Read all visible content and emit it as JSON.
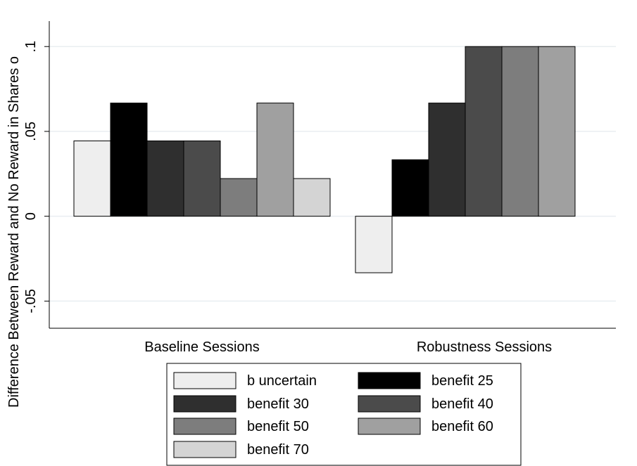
{
  "chart_data": {
    "type": "bar",
    "ylabel": "Difference Between Reward and No Reward in Shares o",
    "ylim": [
      -0.066,
      0.115
    ],
    "yticks": [
      {
        "value": -0.05,
        "label": "-.05"
      },
      {
        "value": 0,
        "label": "0"
      },
      {
        "value": 0.05,
        "label": ".05"
      },
      {
        "value": 0.1,
        "label": ".1"
      }
    ],
    "grid": true,
    "categories": [
      "Baseline Sessions",
      "Robustness Sessions"
    ],
    "series": [
      {
        "name": "b uncertain",
        "color": "#eeeeee",
        "values": [
          0.0444,
          -0.0333
        ]
      },
      {
        "name": "benefit 25",
        "color": "#000000",
        "values": [
          0.0667,
          0.0333
        ]
      },
      {
        "name": "benefit 30",
        "color": "#2f2f2f",
        "values": [
          0.0444,
          0.0667
        ]
      },
      {
        "name": "benefit 40",
        "color": "#4b4b4b",
        "values": [
          0.0444,
          0.1
        ]
      },
      {
        "name": "benefit 50",
        "color": "#7d7d7d",
        "values": [
          0.0222,
          0.1
        ]
      },
      {
        "name": "benefit 60",
        "color": "#a0a0a0",
        "values": [
          0.0667,
          0.1
        ]
      },
      {
        "name": "benefit 70",
        "color": "#d4d4d4",
        "values": [
          0.0222,
          null
        ]
      }
    ],
    "legend_position": "bottom"
  }
}
